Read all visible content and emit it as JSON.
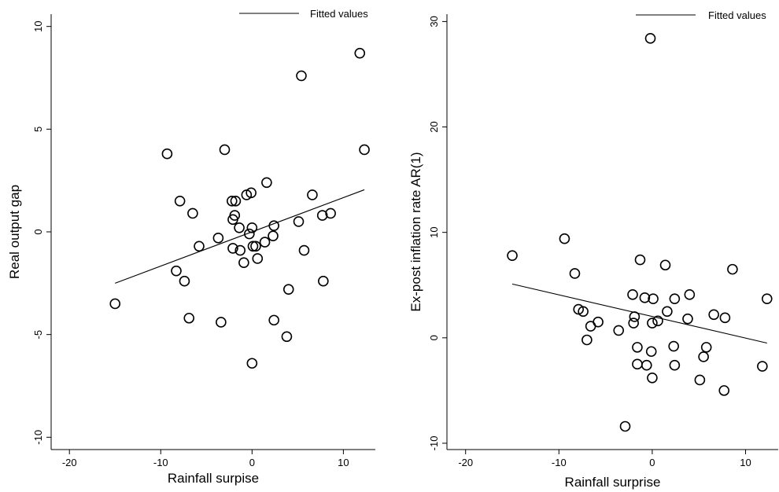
{
  "chart_data": [
    {
      "type": "scatter",
      "title": "",
      "xlabel": "Rainfall surpise",
      "ylabel": "Real output gap",
      "xlim": [
        -22,
        13.5
      ],
      "ylim": [
        -10.6,
        10.6
      ],
      "xticks": [
        -20,
        -10,
        0,
        10
      ],
      "xtick_labels": [
        "-20",
        "-10",
        "0",
        "10"
      ],
      "yticks": [
        -10,
        -5,
        0,
        5,
        10
      ],
      "ytick_labels": [
        "-10",
        "-5",
        "0",
        "5",
        "10"
      ],
      "grid": false,
      "legend": {
        "position": "top-right",
        "entries": [
          "Fitted values"
        ]
      },
      "series": [
        {
          "kind": "scatter",
          "marker": "hollow-circle",
          "x": [
            -15.0,
            -9.3,
            -8.3,
            -7.9,
            -7.4,
            -6.9,
            -6.5,
            -5.8,
            -3.7,
            -3.4,
            -3.0,
            -2.2,
            -2.1,
            -2.1,
            -1.9,
            -1.8,
            -1.4,
            -1.3,
            -0.9,
            -0.6,
            -0.3,
            -0.1,
            0.0,
            0.0,
            0.1,
            0.4,
            0.6,
            1.4,
            1.6,
            2.3,
            2.4,
            2.4,
            3.8,
            4.0,
            5.1,
            5.4,
            5.7,
            6.6,
            7.7,
            7.8,
            8.6,
            11.8,
            12.3
          ],
          "y": [
            -3.5,
            3.8,
            -1.9,
            1.5,
            -2.4,
            -4.2,
            0.9,
            -0.7,
            -0.3,
            -4.4,
            4.0,
            1.5,
            0.6,
            -0.8,
            0.8,
            1.5,
            0.2,
            -0.9,
            -1.5,
            1.8,
            -0.1,
            1.9,
            0.2,
            -6.4,
            -0.7,
            -0.7,
            -1.3,
            -0.5,
            2.4,
            -0.2,
            -4.3,
            0.3,
            -5.1,
            -2.8,
            0.5,
            7.6,
            -0.9,
            1.8,
            0.8,
            -2.4,
            0.9,
            8.7,
            4.0
          ]
        },
        {
          "kind": "line",
          "name": "Fitted values",
          "x": [
            -15.0,
            12.3
          ],
          "y": [
            -2.5,
            2.05
          ]
        }
      ]
    },
    {
      "type": "scatter",
      "title": "",
      "xlabel": "Rainfall surprise",
      "ylabel": "Ex-post inflation rate AR(1)",
      "xlim": [
        -22,
        13.5
      ],
      "ylim": [
        -10.6,
        30.7
      ],
      "xticks": [
        -20,
        -10,
        0,
        10
      ],
      "xtick_labels": [
        "-20",
        "-10",
        "0",
        "10"
      ],
      "yticks": [
        -10,
        0,
        10,
        20,
        30
      ],
      "ytick_labels": [
        "-10",
        "0",
        "10",
        "20",
        "30"
      ],
      "grid": false,
      "legend": {
        "position": "top-right",
        "entries": [
          "Fitted values"
        ]
      },
      "series": [
        {
          "kind": "scatter",
          "marker": "hollow-circle",
          "x": [
            -15.0,
            -9.4,
            -8.3,
            -7.9,
            -7.4,
            -7.0,
            -6.6,
            -5.8,
            -3.6,
            -2.9,
            -2.1,
            -2.0,
            -1.9,
            -1.6,
            -1.6,
            -1.3,
            -0.8,
            -0.6,
            -0.2,
            -0.1,
            0.0,
            0.0,
            0.1,
            0.6,
            1.4,
            1.6,
            2.3,
            2.4,
            2.4,
            3.8,
            4.0,
            5.1,
            5.5,
            5.8,
            6.6,
            7.7,
            7.8,
            8.6,
            11.8,
            12.3
          ],
          "y": [
            7.8,
            9.4,
            6.1,
            2.7,
            2.5,
            -0.2,
            1.1,
            1.5,
            0.7,
            -8.4,
            4.1,
            1.4,
            2.0,
            -0.9,
            -2.5,
            7.4,
            3.8,
            -2.6,
            28.4,
            -1.3,
            -3.8,
            1.4,
            3.7,
            1.6,
            6.9,
            2.5,
            -0.8,
            3.7,
            -2.6,
            1.8,
            4.1,
            -4.0,
            -1.8,
            -0.9,
            2.2,
            -5.0,
            1.9,
            6.5,
            -2.7,
            3.7
          ]
        },
        {
          "kind": "line",
          "name": "Fitted values",
          "x": [
            -15.0,
            12.3
          ],
          "y": [
            5.1,
            -0.5
          ]
        }
      ]
    }
  ]
}
